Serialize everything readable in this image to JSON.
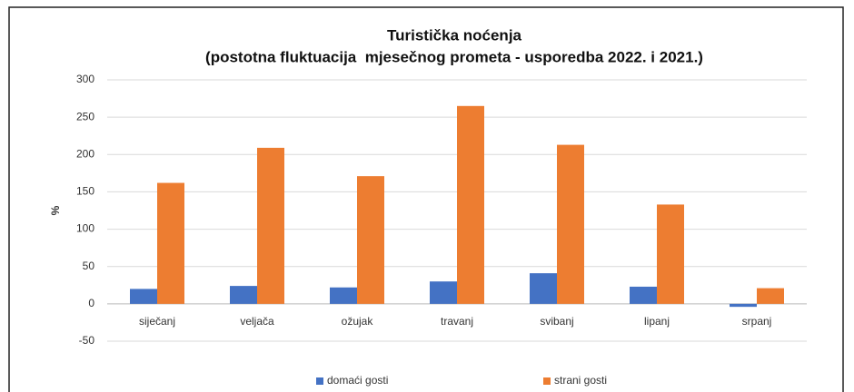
{
  "chart_data": {
    "type": "bar",
    "title": "Turistička noćenja",
    "subtitle": "(postotna fluktuacija  mjesečnog prometa - usporedba 2022. i 2021.)",
    "ylabel": "%",
    "categories": [
      "siječanj",
      "veljača",
      "ožujak",
      "travanj",
      "svibanj",
      "lipanj",
      "srpanj"
    ],
    "series": [
      {
        "name": "domaći gosti",
        "color": "#4472c4",
        "values": [
          20,
          24,
          22,
          30,
          41,
          23,
          -4
        ]
      },
      {
        "name": "strani gosti",
        "color": "#ed7d31",
        "values": [
          162,
          209,
          171,
          265,
          213,
          133,
          21
        ]
      }
    ],
    "ylim": [
      -50,
      300
    ],
    "yticks": [
      -50,
      0,
      50,
      100,
      150,
      200,
      250,
      300
    ],
    "grid": true,
    "legend": "bottom"
  }
}
